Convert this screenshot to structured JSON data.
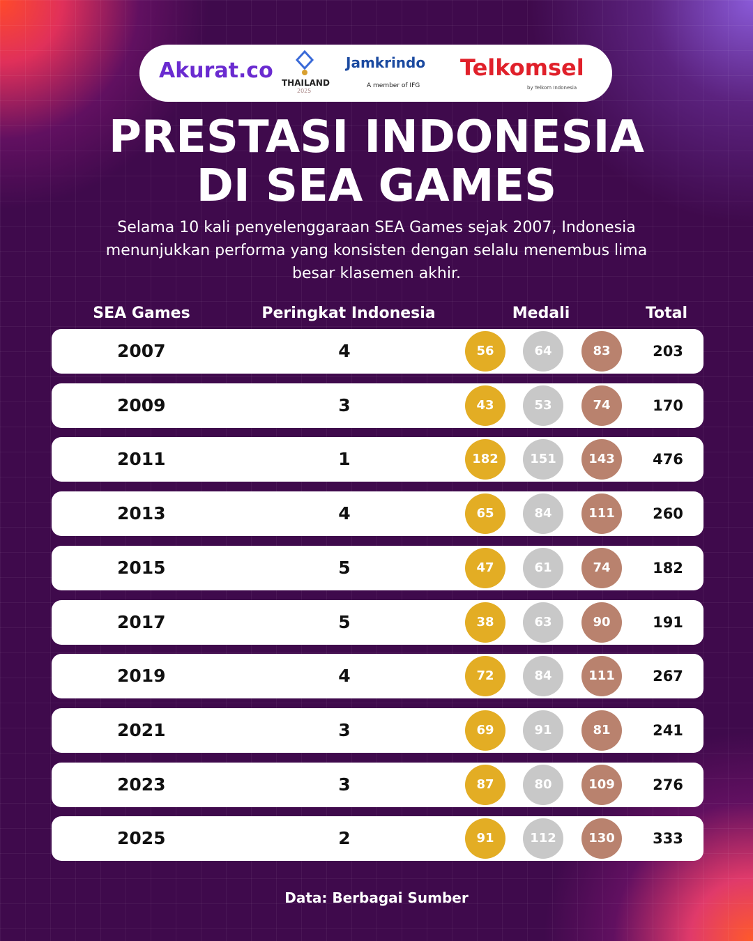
{
  "logos": {
    "akurat": "Akurat.co",
    "thailand": "THAILAND",
    "thailand_year": "2025",
    "jamkrindo": "Jamkrindo",
    "jamkrindo_member": "A member of IFG",
    "telkomsel": "Telkomsel",
    "telkomsel_by": "by Telkom Indonesia"
  },
  "title": [
    "PRESTASI INDONESIA",
    "DI SEA GAMES"
  ],
  "subtitle": "Selama 10 kali penyelenggaraan SEA Games sejak 2007, Indonesia menunjukkan performa yang konsisten dengan selalu menembus lima besar klasemen akhir.",
  "table": {
    "headers": [
      "SEA Games",
      "Peringkat Indonesia",
      "Medali",
      "Total"
    ],
    "rows": [
      [
        "2007",
        "4",
        "56",
        "64",
        "83",
        "203"
      ],
      [
        "2009",
        "3",
        "43",
        "53",
        "74",
        "170"
      ],
      [
        "2011",
        "1",
        "182",
        "151",
        "143",
        "476"
      ],
      [
        "2013",
        "4",
        "65",
        "84",
        "111",
        "260"
      ],
      [
        "2015",
        "5",
        "47",
        "61",
        "74",
        "182"
      ],
      [
        "2017",
        "5",
        "38",
        "63",
        "90",
        "191"
      ],
      [
        "2019",
        "4",
        "72",
        "84",
        "111",
        "267"
      ],
      [
        "2021",
        "3",
        "69",
        "91",
        "81",
        "241"
      ],
      [
        "2023",
        "3",
        "87",
        "80",
        "109",
        "276"
      ],
      [
        "2025",
        "2",
        "91",
        "112",
        "130",
        "333"
      ]
    ]
  },
  "source": "Data: Berbagai Sumber"
}
